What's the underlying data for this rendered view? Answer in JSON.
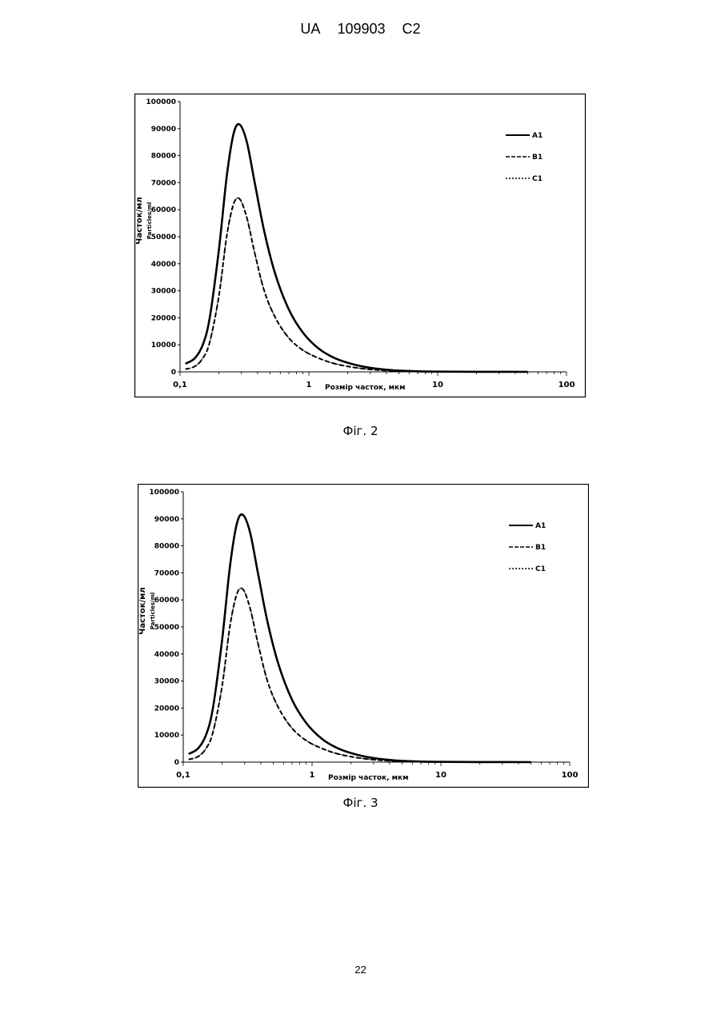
{
  "header": {
    "ua": "UA",
    "number": "109903",
    "kind": "C2"
  },
  "page_number": "22",
  "chart_data": [
    {
      "type": "line",
      "caption": "Фіг. 2",
      "xlabel": "Розмір часток, мкм",
      "ylabel": "Часток/мл",
      "ylabel2": "Particles/ml",
      "xscale": "log",
      "xlim": [
        0.1,
        100
      ],
      "ylim": [
        0,
        100000
      ],
      "x_ticks": [
        "0,1",
        "1",
        "10",
        "100"
      ],
      "y_ticks": [
        "0",
        "10000",
        "20000",
        "30000",
        "40000",
        "50000",
        "60000",
        "70000",
        "80000",
        "90000",
        "100000"
      ],
      "grid": false,
      "legend_position": "right",
      "x": [
        0.11,
        0.13,
        0.15,
        0.17,
        0.2,
        0.23,
        0.26,
        0.29,
        0.33,
        0.38,
        0.45,
        0.55,
        0.7,
        0.9,
        1.2,
        1.6,
        2.2,
        3,
        4.5,
        7,
        10,
        20,
        50
      ],
      "series": [
        {
          "name": "A1",
          "style": "solid",
          "values": [
            3000,
            5000,
            10000,
            20000,
            45000,
            72000,
            88000,
            91500,
            85000,
            70000,
            52000,
            36000,
            23000,
            14500,
            8500,
            5000,
            2800,
            1500,
            600,
            200,
            80,
            20,
            0
          ]
        },
        {
          "name": "B1",
          "style": "dashed",
          "values": [
            1000,
            2000,
            5000,
            11000,
            28000,
            50000,
            62000,
            64000,
            57000,
            44000,
            30000,
            20000,
            12500,
            8000,
            5000,
            3000,
            1700,
            900,
            350,
            120,
            40,
            10,
            0
          ]
        },
        {
          "name": "C1",
          "style": "dotted",
          "values": [
            1000,
            2000,
            5000,
            11000,
            28000,
            50000,
            62000,
            64000,
            57000,
            44000,
            30000,
            20000,
            12500,
            8000,
            5000,
            3000,
            1700,
            900,
            350,
            120,
            40,
            10,
            0
          ]
        }
      ]
    },
    {
      "type": "line",
      "caption": "Фіг. 3",
      "xlabel": "Розмір часток, мкм",
      "ylabel": "Часток/мл",
      "ylabel2": "Particles/ml",
      "xscale": "log",
      "xlim": [
        0.1,
        100
      ],
      "ylim": [
        0,
        100000
      ],
      "x_ticks": [
        "0,1",
        "1",
        "10",
        "100"
      ],
      "y_ticks": [
        "0",
        "10000",
        "20000",
        "30000",
        "40000",
        "50000",
        "60000",
        "70000",
        "80000",
        "90000",
        "100000"
      ],
      "grid": false,
      "legend_position": "right",
      "x": [
        0.11,
        0.13,
        0.15,
        0.17,
        0.2,
        0.23,
        0.26,
        0.29,
        0.33,
        0.38,
        0.45,
        0.55,
        0.7,
        0.9,
        1.2,
        1.6,
        2.2,
        3,
        4.5,
        7,
        10,
        20,
        50
      ],
      "series": [
        {
          "name": "A1",
          "style": "solid",
          "values": [
            3000,
            5000,
            10000,
            20000,
            45000,
            72000,
            88000,
            91500,
            85000,
            70000,
            52000,
            36000,
            23000,
            14500,
            8500,
            5000,
            2800,
            1500,
            600,
            200,
            80,
            20,
            0
          ]
        },
        {
          "name": "B1",
          "style": "dashed",
          "values": [
            1000,
            2000,
            5000,
            11000,
            28000,
            50000,
            62000,
            64000,
            57000,
            44000,
            30000,
            20000,
            12500,
            8000,
            5000,
            3000,
            1700,
            900,
            350,
            120,
            40,
            10,
            0
          ]
        },
        {
          "name": "C1",
          "style": "dotted",
          "values": [
            1000,
            2000,
            5000,
            11000,
            28000,
            50000,
            62000,
            64000,
            57000,
            44000,
            30000,
            20000,
            12500,
            8000,
            5000,
            3000,
            1700,
            900,
            350,
            120,
            40,
            10,
            0
          ]
        }
      ]
    }
  ]
}
